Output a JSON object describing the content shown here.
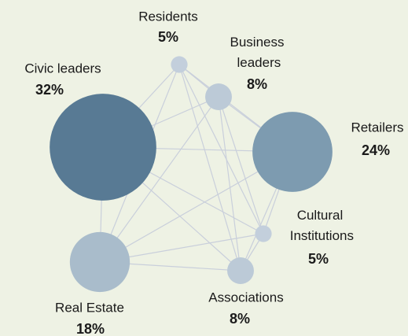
{
  "chart_data": {
    "type": "network",
    "categories": [
      "Residents",
      "Business leaders",
      "Civic leaders",
      "Retailers",
      "Cultural Institutions",
      "Associations",
      "Real Estate"
    ],
    "values": [
      5,
      8,
      32,
      24,
      5,
      8,
      18
    ],
    "value_labels": [
      "5%",
      "8%",
      "32%",
      "24%",
      "5%",
      "8%",
      "18%"
    ],
    "colors": [
      "#c3cfdc",
      "#bccad7",
      "#587a94",
      "#7d9bb0",
      "#c3cfdc",
      "#bccad7",
      "#a9bccb"
    ]
  }
}
